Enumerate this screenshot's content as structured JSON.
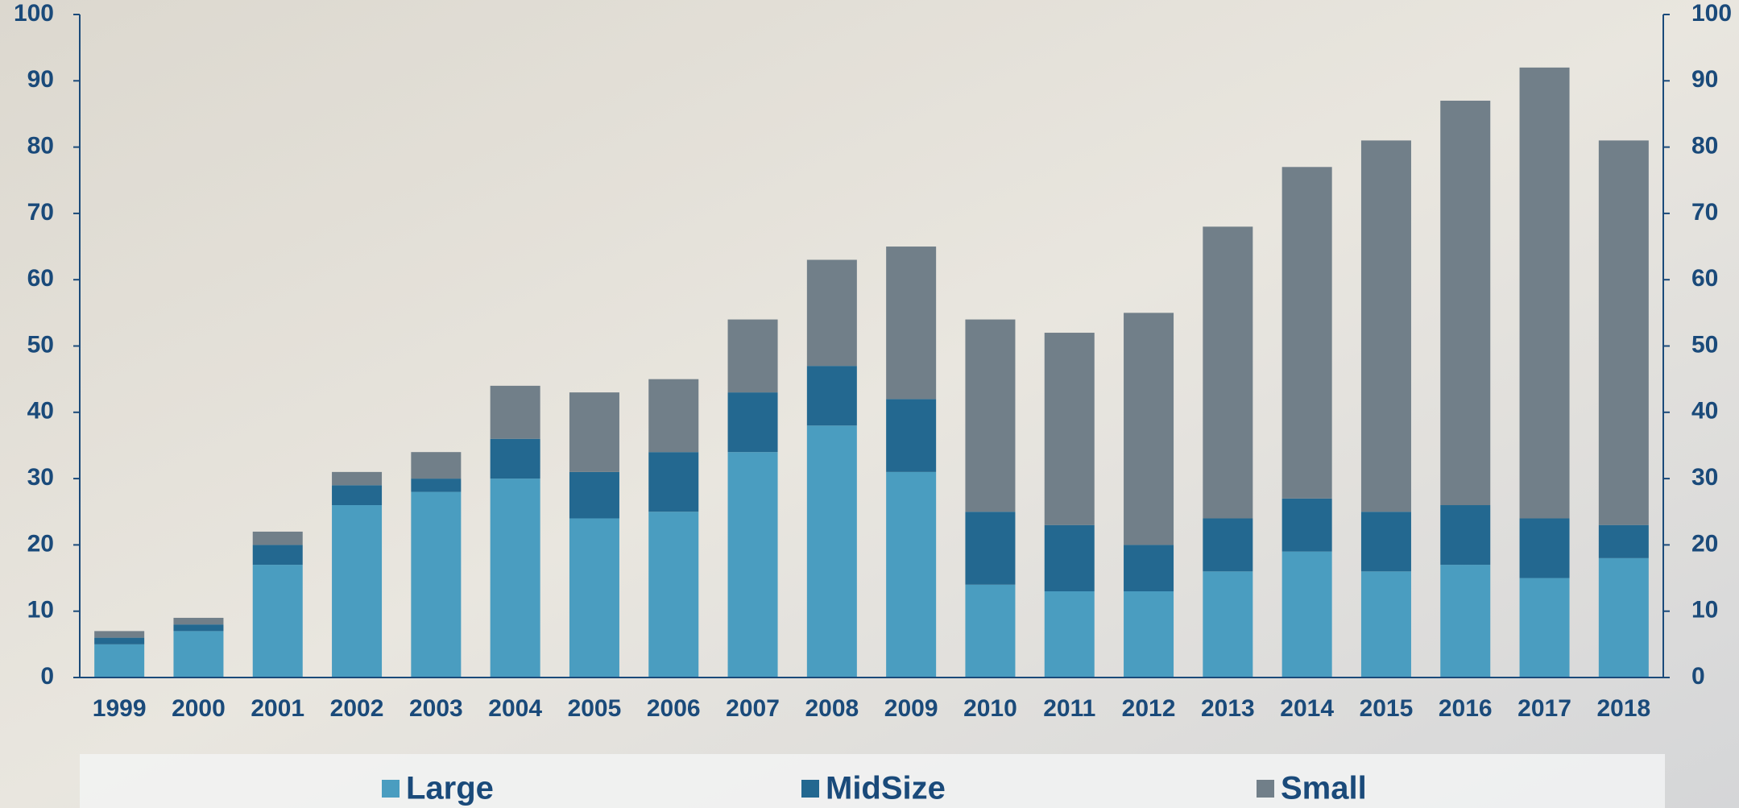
{
  "chart_data": {
    "type": "stacked_bar",
    "categories": [
      "1999",
      "2000",
      "2001",
      "2002",
      "2003",
      "2004",
      "2005",
      "2006",
      "2007",
      "2008",
      "2009",
      "2010",
      "2011",
      "2012",
      "2013",
      "2014",
      "2015",
      "2016",
      "2017",
      "2018"
    ],
    "series": [
      {
        "name": "Large",
        "color": "#4a9dc0",
        "values": [
          5,
          7,
          17,
          26,
          28,
          30,
          24,
          25,
          34,
          38,
          31,
          14,
          13,
          13,
          16,
          19,
          16,
          17,
          15,
          18
        ]
      },
      {
        "name": "MidSize",
        "color": "#236890",
        "values": [
          1,
          1,
          3,
          3,
          2,
          6,
          7,
          9,
          9,
          9,
          11,
          11,
          10,
          7,
          8,
          8,
          9,
          9,
          9,
          5
        ]
      },
      {
        "name": "Small",
        "color": "#717f89",
        "values": [
          1,
          1,
          2,
          2,
          4,
          8,
          12,
          11,
          11,
          16,
          23,
          29,
          29,
          35,
          44,
          50,
          56,
          61,
          68,
          58
        ]
      }
    ],
    "ylim": [
      0,
      100
    ],
    "yticks": [
      0,
      10,
      20,
      30,
      40,
      50,
      60,
      70,
      80,
      90,
      100
    ],
    "y2lim": [
      0,
      100
    ],
    "y2ticks": [
      0,
      10,
      20,
      30,
      40,
      50,
      60,
      70,
      80,
      90,
      100
    ],
    "legend": "bottom"
  }
}
